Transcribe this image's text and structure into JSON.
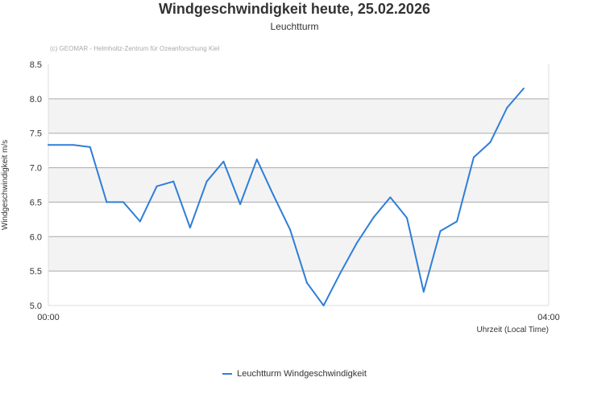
{
  "chart_data": {
    "type": "line",
    "title": "Windgeschwindigkeit heute, 25.02.2026",
    "subtitle": "Leuchtturm",
    "credit": "(c) GEOMAR - Helmholtz-Zentrum für Ozeanforschung Kiel",
    "xlabel": "Uhrzeit (Local Time)",
    "ylabel": "Windgeschwindigkeit m/s",
    "xlim": [
      "00:00",
      "04:00"
    ],
    "x_ticks": [
      "00:00",
      "04:00"
    ],
    "ylim": [
      5.0,
      8.5
    ],
    "y_ticks": [
      "5.0",
      "5.5",
      "6.0",
      "6.5",
      "7.0",
      "7.5",
      "8.0",
      "8.5"
    ],
    "grid": true,
    "legend_position": "bottom",
    "colors": {
      "series": "#2f7ed8",
      "band": "#f3f3f3",
      "grid": "#aaaaaa"
    },
    "series": [
      {
        "name": "Leuchtturm Windgeschwindigkeit",
        "x": [
          "00:00",
          "00:12",
          "00:20",
          "00:28",
          "00:36",
          "00:44",
          "00:52",
          "01:00",
          "01:08",
          "01:16",
          "01:24",
          "01:32",
          "01:40",
          "01:48",
          "01:56",
          "02:04",
          "02:12",
          "02:20",
          "02:28",
          "02:36",
          "02:44",
          "02:52",
          "03:00",
          "03:08",
          "03:16",
          "03:24",
          "03:32",
          "03:40",
          "03:48"
        ],
        "values": [
          7.33,
          7.33,
          7.3,
          6.5,
          6.5,
          6.22,
          6.73,
          6.8,
          6.13,
          6.8,
          7.09,
          6.47,
          7.12,
          6.6,
          6.1,
          5.33,
          5.0,
          5.47,
          5.91,
          6.28,
          6.57,
          6.27,
          5.2,
          6.08,
          6.22,
          7.15,
          7.37,
          7.87,
          8.15
        ]
      }
    ]
  }
}
